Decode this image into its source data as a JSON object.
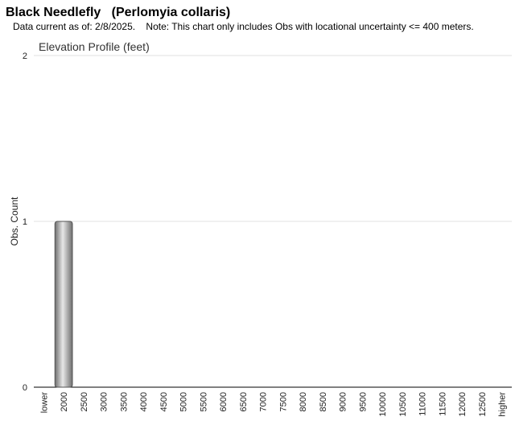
{
  "chart_data": {
    "type": "bar",
    "title": "Black Needlefly   (Perlomyia collaris)",
    "subtitle": "Data current as of: 2/8/2025.    Note: This chart only includes Obs with locational uncertainty <= 400 meters.",
    "chart_title": "Elevation Profile (feet)",
    "y_label": "Obs. Count",
    "categories": [
      "lower",
      "2000",
      "2500",
      "3000",
      "3500",
      "4000",
      "4500",
      "5000",
      "5500",
      "6000",
      "6500",
      "7000",
      "7500",
      "8000",
      "8500",
      "9000",
      "9500",
      "10000",
      "10500",
      "11000",
      "11500",
      "12000",
      "12500",
      "higher"
    ],
    "values": [
      0,
      1,
      0,
      0,
      0,
      0,
      0,
      0,
      0,
      0,
      0,
      0,
      0,
      0,
      0,
      0,
      0,
      0,
      0,
      0,
      0,
      0,
      0,
      0
    ],
    "color": "#999999",
    "ylim": [
      0,
      2
    ],
    "yticks": [
      0,
      1,
      2
    ],
    "grid": true
  }
}
